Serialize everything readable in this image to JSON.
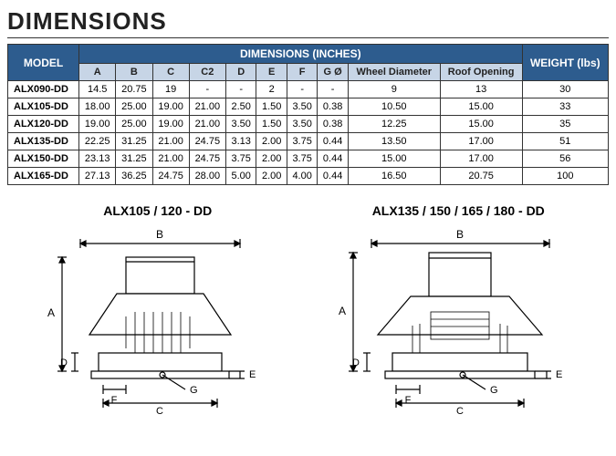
{
  "title": "DIMENSIONS",
  "table_header_group": "DIMENSIONS (INCHES)",
  "col_model": "MODEL",
  "col_weight": "WEIGHT (lbs)",
  "cols": [
    "A",
    "B",
    "C",
    "C2",
    "D",
    "E",
    "F",
    "G Ø",
    "Wheel Diameter",
    "Roof Opening"
  ],
  "rows": [
    {
      "model": "ALX090-DD",
      "A": "14.5",
      "B": "20.75",
      "C": "19",
      "C2": "-",
      "D": "-",
      "E": "2",
      "F": "-",
      "G": "-",
      "WD": "9",
      "RO": "13",
      "W": "30"
    },
    {
      "model": "ALX105-DD",
      "A": "18.00",
      "B": "25.00",
      "C": "19.00",
      "C2": "21.00",
      "D": "2.50",
      "E": "1.50",
      "F": "3.50",
      "G": "0.38",
      "WD": "10.50",
      "RO": "15.00",
      "W": "33"
    },
    {
      "model": "ALX120-DD",
      "A": "19.00",
      "B": "25.00",
      "C": "19.00",
      "C2": "21.00",
      "D": "3.50",
      "E": "1.50",
      "F": "3.50",
      "G": "0.38",
      "WD": "12.25",
      "RO": "15.00",
      "W": "35"
    },
    {
      "model": "ALX135-DD",
      "A": "22.25",
      "B": "31.25",
      "C": "21.00",
      "C2": "24.75",
      "D": "3.13",
      "E": "2.00",
      "F": "3.75",
      "G": "0.44",
      "WD": "13.50",
      "RO": "17.00",
      "W": "51"
    },
    {
      "model": "ALX150-DD",
      "A": "23.13",
      "B": "31.25",
      "C": "21.00",
      "C2": "24.75",
      "D": "3.75",
      "E": "2.00",
      "F": "3.75",
      "G": "0.44",
      "WD": "15.00",
      "RO": "17.00",
      "W": "56"
    },
    {
      "model": "ALX165-DD",
      "A": "27.13",
      "B": "36.25",
      "C": "24.75",
      "C2": "28.00",
      "D": "5.00",
      "E": "2.00",
      "F": "4.00",
      "G": "0.44",
      "WD": "16.50",
      "RO": "20.75",
      "W": "100"
    }
  ],
  "diagram1_label": "ALX105 / 120 - DD",
  "diagram2_label": "ALX135 / 150 / 165 / 180 - DD",
  "dims_labels": {
    "A": "A",
    "B": "B",
    "C": "C",
    "D": "D",
    "E": "E",
    "F": "F",
    "G": "G"
  },
  "styling": {
    "header_bg": "#2d5c8e",
    "subheader_bg": "#c7d5e6",
    "border": "#333333",
    "title_fontsize": 26,
    "table_fontsize": 11
  }
}
